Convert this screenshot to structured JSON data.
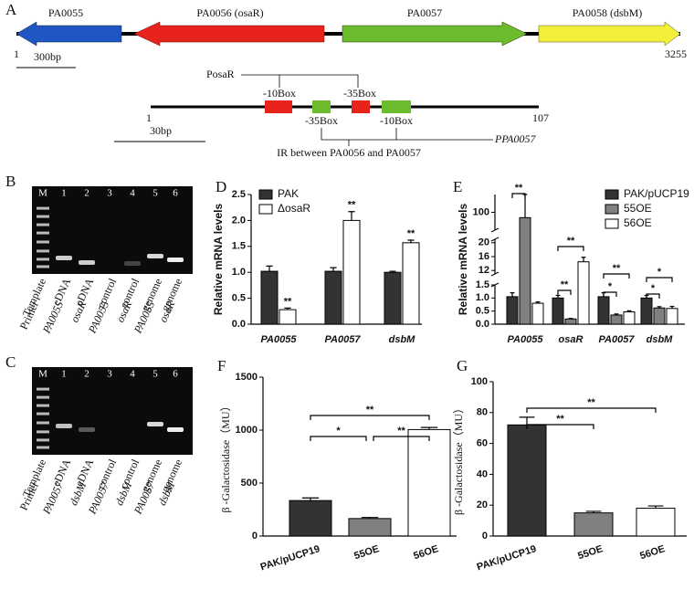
{
  "figure": {
    "panel_a": {
      "label": "A",
      "genes": [
        "PA0055",
        "PA0056 (osaR)",
        "PA0057",
        "PA0058 (dsbM)"
      ],
      "start": 1,
      "end": 3255,
      "scale": "300bp",
      "promoter_osaR": "PosaR",
      "osaR_boxes": [
        "-10Box",
        "-35Box"
      ],
      "region_start": 1,
      "region_end": 107,
      "region_scale": "30bp",
      "pa0057_boxes": [
        "-35Box",
        "-10Box"
      ],
      "promoter_pa0057": "PPA0057",
      "ir": "IR between PA0056 and PA0057"
    },
    "panel_b": {
      "label": "B",
      "lanes": [
        "M",
        "1",
        "2",
        "3",
        "4",
        "5",
        "6"
      ],
      "template_label": "Template",
      "primer_label": "Primer",
      "templates": [
        "cDNA",
        "cDNA",
        "control",
        "control",
        "genome",
        "genome"
      ],
      "primers": [
        "PA0055",
        "osaR",
        "PA0055",
        "osaR",
        "PA0055",
        "osaR"
      ]
    },
    "panel_c": {
      "label": "C",
      "lanes": [
        "M",
        "1",
        "2",
        "3",
        "4",
        "5",
        "6"
      ],
      "template_label": "Template",
      "primer_label": "Primer",
      "templates": [
        "cDNA",
        "cDNA",
        "control",
        "control",
        "genome",
        "genome"
      ],
      "primers": [
        "PA0057",
        "dsbM",
        "PA0057",
        "dsbM",
        "PA0057",
        "dsbM"
      ]
    }
  },
  "chart_data": [
    {
      "type": "bar",
      "panel": "D",
      "ylabel": "Relative mRNA levels",
      "categories": [
        "PA0055",
        "PA0057",
        "dsbM"
      ],
      "series": [
        {
          "name": "PAK",
          "color": "#333333",
          "values": [
            1.02,
            1.02,
            1.0
          ],
          "errors": [
            0.1,
            0.07,
            0.02
          ]
        },
        {
          "name": "ΔosaR",
          "color": "#ffffff",
          "values": [
            0.28,
            2.0,
            1.57
          ],
          "errors": [
            0.03,
            0.17,
            0.05
          ]
        }
      ],
      "ylim": [
        0,
        2.5
      ],
      "yticks": [
        {
          "value": 0,
          "label": "0.0"
        },
        {
          "value": 0.5,
          "label": "0.5"
        },
        {
          "value": 1,
          "label": "1.0"
        },
        {
          "value": 1.5,
          "label": "1.5"
        },
        {
          "value": 2,
          "label": "2.0"
        },
        {
          "value": 2.5,
          "label": "2.5"
        }
      ],
      "significance": [
        "**",
        "**",
        "**"
      ],
      "legend": "upper left"
    },
    {
      "type": "bar",
      "panel": "E",
      "ylabel": "Relative mRNA levels",
      "categories": [
        "PA0055",
        "osaR",
        "PA0057",
        "dsbM"
      ],
      "series": [
        {
          "name": "PAK/pUCP19",
          "color": "#333333",
          "values": [
            1.05,
            1.0,
            1.05,
            1.0
          ],
          "errors": [
            0.15,
            0.1,
            0.15,
            0.1
          ]
        },
        {
          "name": "55OE",
          "color": "#808080",
          "values": [
            97,
            0.2,
            0.35,
            0.62
          ],
          "errors": [
            13,
            0.02,
            0.04,
            0.05
          ]
        },
        {
          "name": "56OE",
          "color": "#ffffff",
          "values": [
            0.8,
            14.5,
            0.47,
            0.6
          ],
          "errors": [
            0.05,
            1.3,
            0.04,
            0.08
          ]
        }
      ],
      "segments": [
        {
          "ylim": [
            0,
            1.5
          ],
          "yticks": [
            {
              "value": 0,
              "label": "0.0"
            },
            {
              "value": 0.5,
              "label": "0.5"
            },
            {
              "value": 1,
              "label": "1.0"
            },
            {
              "value": 1.5,
              "label": "1.5"
            }
          ]
        },
        {
          "ylim": [
            11,
            21
          ],
          "yticks": [
            12,
            16,
            20
          ]
        },
        {
          "ylim": [
            90,
            110
          ],
          "yticks": [
            100
          ]
        }
      ],
      "significance": [
        "**",
        "**",
        "**",
        "*",
        "**",
        "*",
        "*"
      ],
      "legend": "upper right"
    },
    {
      "type": "bar",
      "panel": "F",
      "ylabel": "β -Galactosidase（MU）",
      "categories": [
        "PAK/pUCP19",
        "55OE",
        "56OE"
      ],
      "values": [
        335,
        165,
        1005
      ],
      "errors": [
        25,
        10,
        20
      ],
      "colors": [
        "#333333",
        "#808080",
        "#ffffff"
      ],
      "ylim": [
        0,
        1500
      ],
      "yticks": [
        0,
        500,
        1000,
        1500
      ],
      "significance": [
        "*",
        "**",
        "**"
      ]
    },
    {
      "type": "bar",
      "panel": "G",
      "ylabel": "β -Galactosidase（MU）",
      "categories": [
        "PAK/pUCP19",
        "55OE",
        "56OE"
      ],
      "values": [
        72,
        15,
        18
      ],
      "errors": [
        5,
        1,
        1.5
      ],
      "colors": [
        "#333333",
        "#808080",
        "#ffffff"
      ],
      "ylim": [
        0,
        100
      ],
      "yticks": [
        0,
        20,
        40,
        60,
        80,
        100
      ],
      "significance": [
        "**",
        "**"
      ]
    }
  ]
}
